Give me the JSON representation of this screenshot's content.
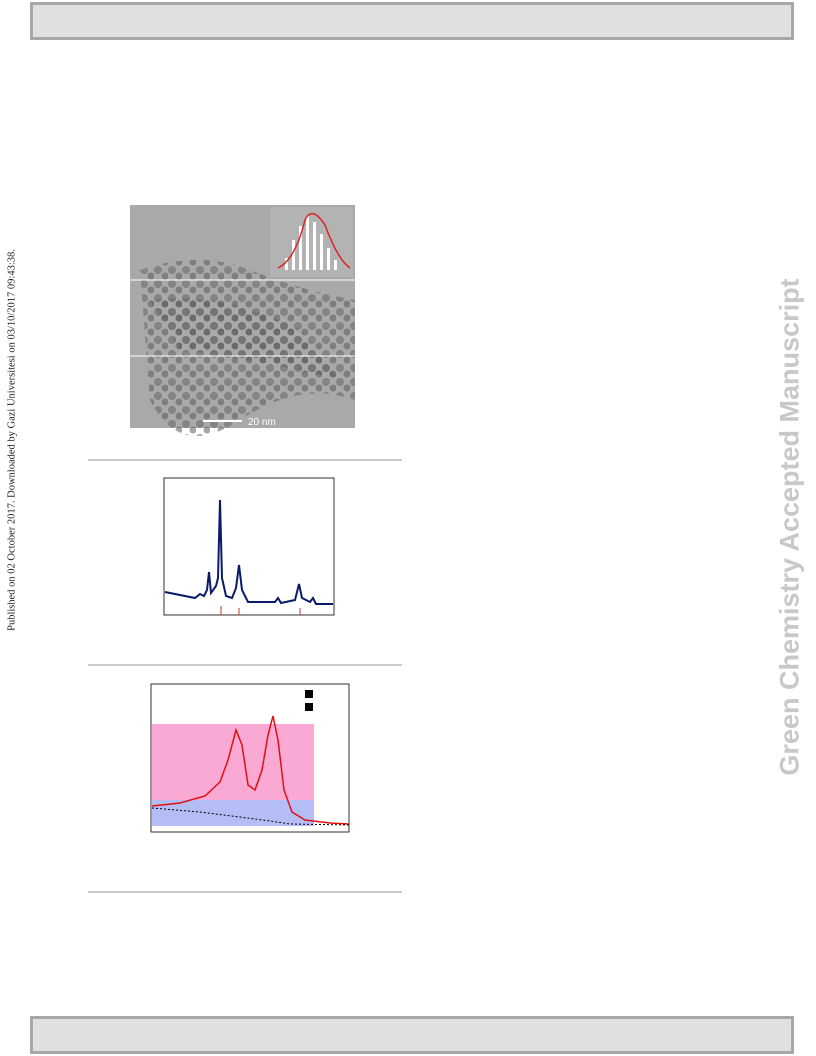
{
  "side_note": "Published on 02 October 2017. Downloaded by Gazi Universitesi on 03/10/2017 09:43:38.",
  "watermark": "Green Chemistry Accepted Manuscript",
  "figure": {
    "scale_bar_label": "20 nm"
  }
}
